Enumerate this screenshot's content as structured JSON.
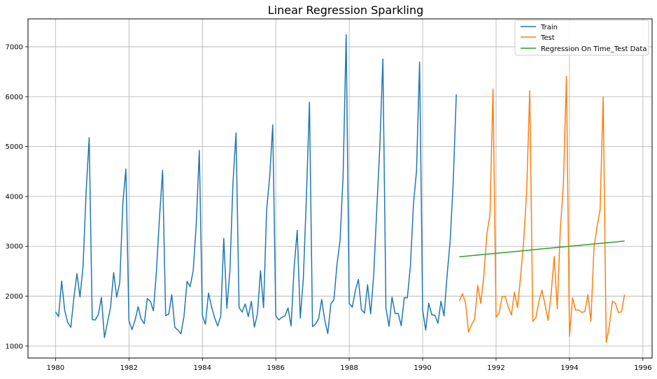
{
  "chart_data": {
    "type": "line",
    "title": "Linear Regression Sparkling",
    "xlabel": "",
    "ylabel": "",
    "xlim": [
      1979.25,
      1996.25
    ],
    "ylim": [
      760,
      7560
    ],
    "x_ticks": [
      1980,
      1982,
      1984,
      1986,
      1988,
      1990,
      1992,
      1994,
      1996
    ],
    "y_ticks": [
      1000,
      2000,
      3000,
      4000,
      5000,
      6000,
      7000
    ],
    "grid": true,
    "legend_position": "top-right",
    "series": [
      {
        "name": "Train",
        "color": "#1f77b4",
        "x_start": 1980.0,
        "x_step_months": 1,
        "values": [
          1686,
          1591,
          2304,
          1712,
          1471,
          1377,
          1966,
          2453,
          1984,
          2596,
          4087,
          5179,
          1530,
          1523,
          1633,
          1976,
          1170,
          1480,
          1781,
          2472,
          1981,
          2273,
          3857,
          4551,
          1510,
          1329,
          1518,
          1790,
          1537,
          1449,
          1954,
          1897,
          1706,
          2514,
          3593,
          4524,
          1609,
          1638,
          2030,
          1375,
          1320,
          1245,
          1600,
          2298,
          2191,
          2511,
          3440,
          4923,
          1609,
          1435,
          2061,
          1789,
          1567,
          1404,
          1597,
          3159,
          1759,
          2504,
          4273,
          5274,
          1771,
          1682,
          1846,
          1589,
          1896,
          1379,
          1645,
          2512,
          1771,
          3727,
          4388,
          5434,
          1606,
          1523,
          1577,
          1605,
          1765,
          1403,
          2584,
          3318,
          1562,
          2349,
          3987,
          5891,
          1389,
          1442,
          1548,
          1935,
          1518,
          1250,
          1847,
          1930,
          2638,
          3114,
          4405,
          7242,
          1853,
          1779,
          2108,
          2336,
          1728,
          1661,
          2230,
          1645,
          2421,
          3740,
          4988,
          6757,
          1757,
          1394,
          1982,
          1650,
          1654,
          1406,
          1971,
          1968,
          2608,
          3845,
          4514,
          6694,
          1720,
          1321,
          1859,
          1628,
          1615,
          1457,
          1899,
          1605,
          2424,
          3116,
          4286,
          6047
        ]
      },
      {
        "name": "Test",
        "color": "#ff7f0e",
        "x_start": 1991.0,
        "x_step_months": 1,
        "values": [
          1902,
          2049,
          1874,
          1279,
          1432,
          1540,
          2214,
          1857,
          2408,
          3252,
          3627,
          6153,
          1577,
          1667,
          1993,
          1997,
          1783,
          1625,
          2076,
          1773,
          2377,
          3088,
          4096,
          6119,
          1494,
          1564,
          1898,
          2121,
          1831,
          1515,
          2048,
          2795,
          1749,
          3339,
          4227,
          6410,
          1197,
          1968,
          1720,
          1725,
          1674,
          1693,
          2031,
          1495,
          2968,
          3385,
          3729,
          5999,
          1070,
          1402,
          1897,
          1862,
          1670,
          1688,
          2031
        ]
      },
      {
        "name": "Regression On Time_Test Data",
        "color": "#2ca02c",
        "x": [
          1991.0,
          1995.5
        ],
        "values": [
          2790,
          3105
        ]
      }
    ]
  }
}
